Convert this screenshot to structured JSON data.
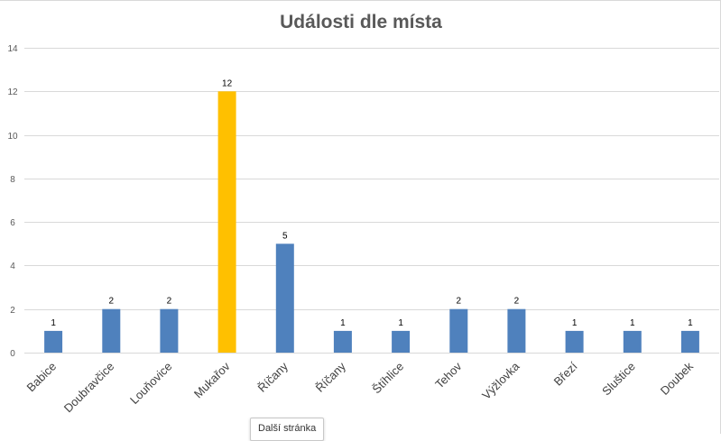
{
  "chart_data": {
    "type": "bar",
    "title": "Události dle místa",
    "categories": [
      "Babice",
      "Doubravčice",
      "Louňovice",
      "Mukařov",
      "Říčany",
      "Říčany",
      "Štíhlice",
      "Tehov",
      "Výžlovka",
      "Březí",
      "Sluštice",
      "Doubek"
    ],
    "values": [
      1,
      2,
      2,
      12,
      5,
      1,
      1,
      2,
      2,
      1,
      1,
      1
    ],
    "highlight_index": 3,
    "ylim": [
      0,
      14
    ],
    "yticks": [
      0,
      2,
      4,
      6,
      8,
      10,
      12,
      14
    ],
    "grid": true,
    "xlabel": "",
    "ylabel": "",
    "colors": {
      "bar": "#4f81bd",
      "highlight": "#ffc000"
    }
  },
  "tooltip": {
    "text": "Další stránka"
  }
}
